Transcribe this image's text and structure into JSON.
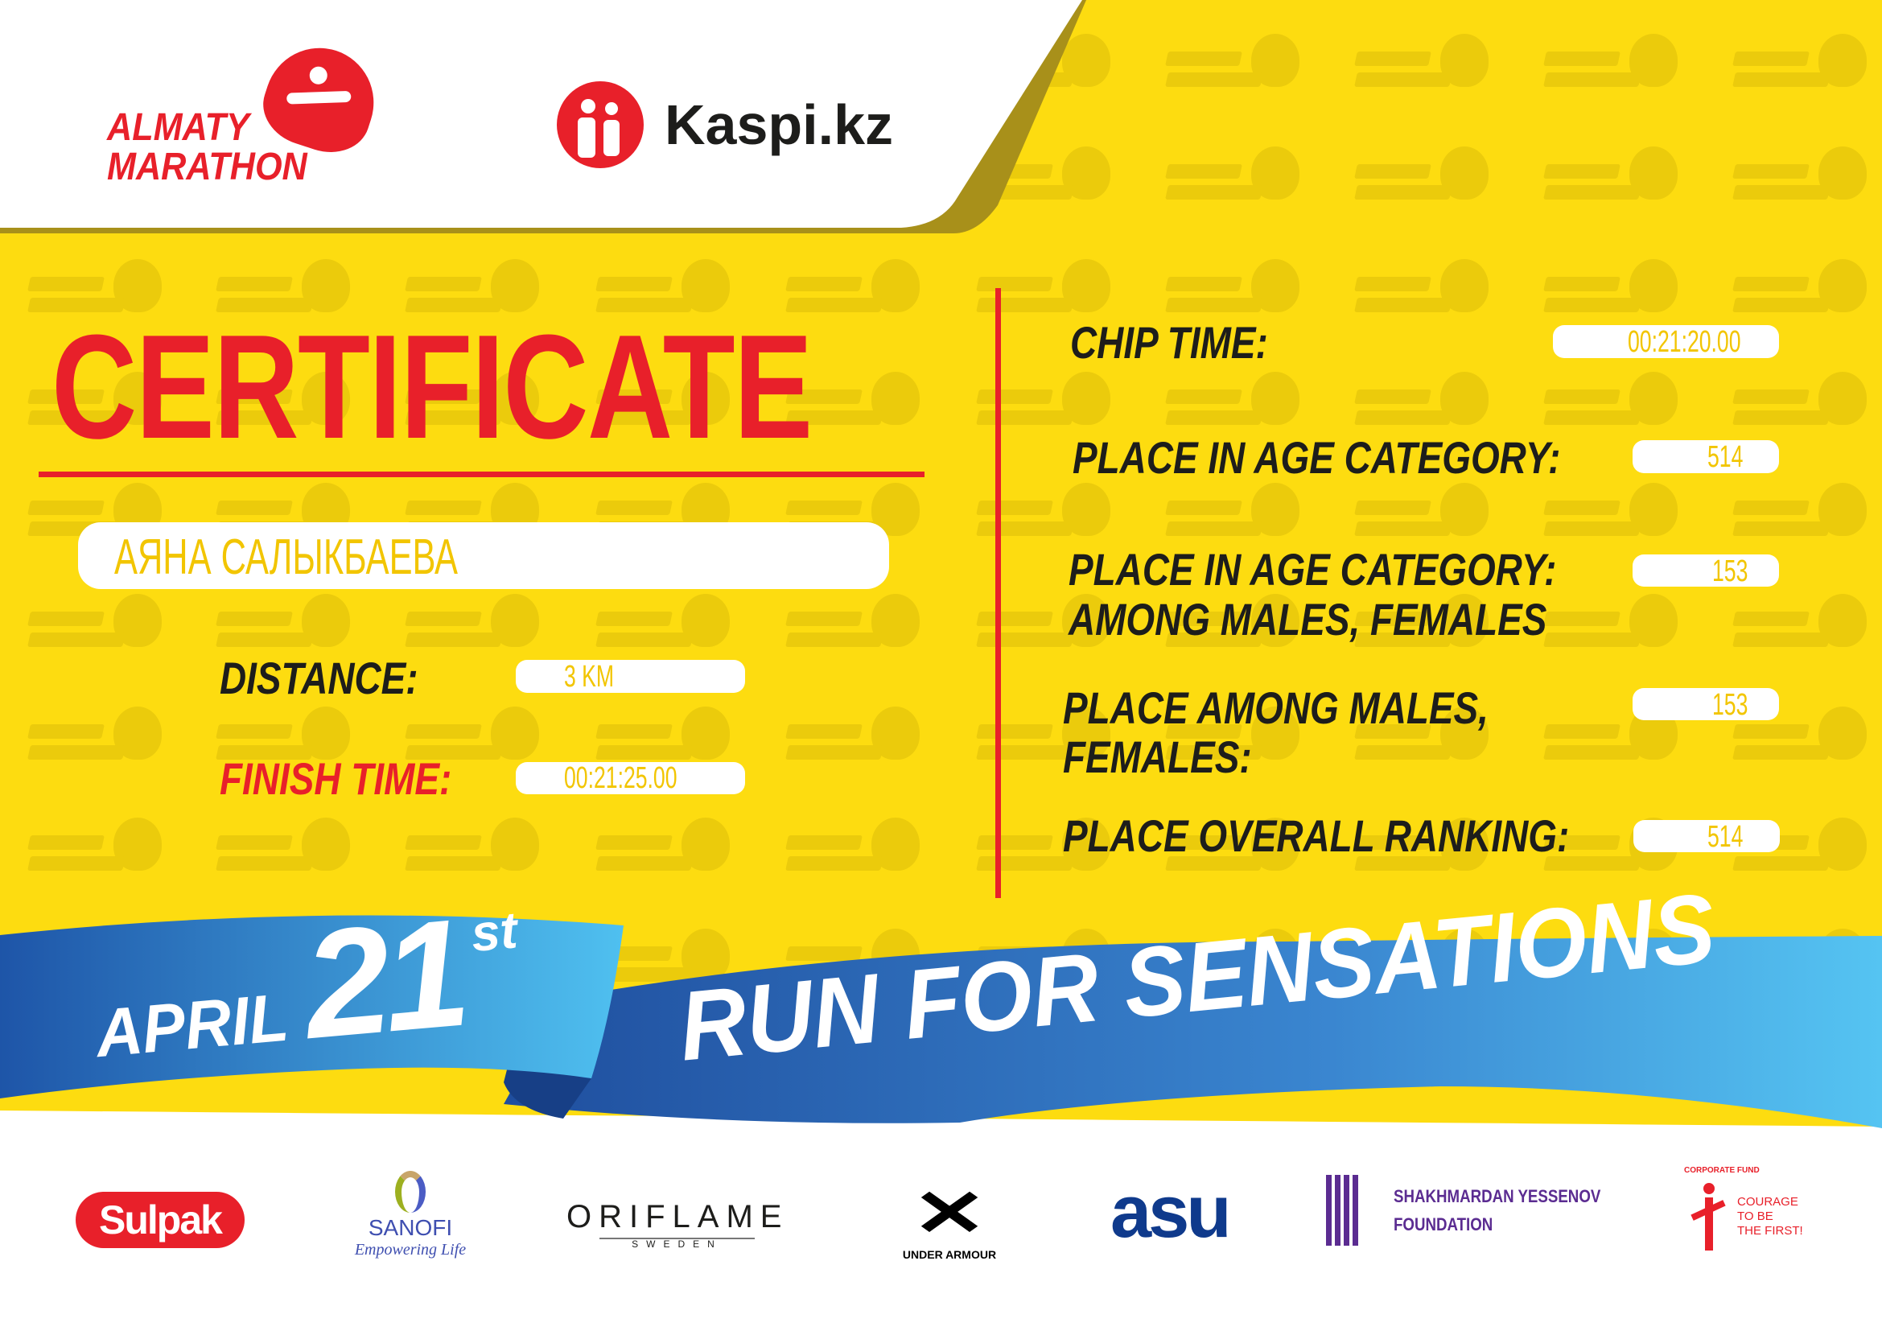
{
  "watermark_text": [
    "ALMATY",
    "MARATHON"
  ],
  "header": {
    "event_logo": [
      "ALMATY",
      "MARATHON"
    ],
    "sponsor_logo": "Kaspi.kz"
  },
  "certificate": {
    "title": "CERTIFICATE",
    "participant_name": "АЯНА САЛЫКБАЕВА",
    "distance_label": "DISTANCE:",
    "distance_value": "3 KM",
    "finish_label": "FINISH TIME:",
    "finish_value": "00:21:25.00"
  },
  "results": [
    {
      "label": [
        "CHIP TIME:"
      ],
      "value": "00:21:20.00"
    },
    {
      "label": [
        "PLACE IN AGE CATEGORY:"
      ],
      "value": "514"
    },
    {
      "label": [
        "PLACE IN AGE CATEGORY:",
        "AMONG MALES, FEMALES"
      ],
      "value": "153"
    },
    {
      "label": [
        "PLACE AMONG MALES,",
        "FEMALES:"
      ],
      "value": "153"
    },
    {
      "label": [
        "PLACE OVERALL RANKING:"
      ],
      "value": "514"
    }
  ],
  "banner": {
    "month": "APRIL",
    "day": "21",
    "suffix": "st",
    "slogan": "RUN FOR SENSATIONS"
  },
  "sponsors": {
    "sulpak": "Sulpak",
    "sanofi": "SANOFI",
    "sanofi_tag": "Empowering Life",
    "oriflame": "ORIFLAME",
    "oriflame_sub": "SWEDEN",
    "ua": "UNDER ARMOUR",
    "asu": "asu",
    "yessenov": [
      "SHAKHMARDAN YESSENOV",
      "FOUNDATION"
    ],
    "courage": [
      "COURAGE",
      "TO BE",
      "THE FIRST!"
    ],
    "courage_arc": "CORPORATE FUND"
  },
  "colors": {
    "yellow": "#FDDC10",
    "red": "#E8202A",
    "blue": "#2566BE",
    "light_blue": "#4DBDF0",
    "text": "#1D1D1B"
  }
}
